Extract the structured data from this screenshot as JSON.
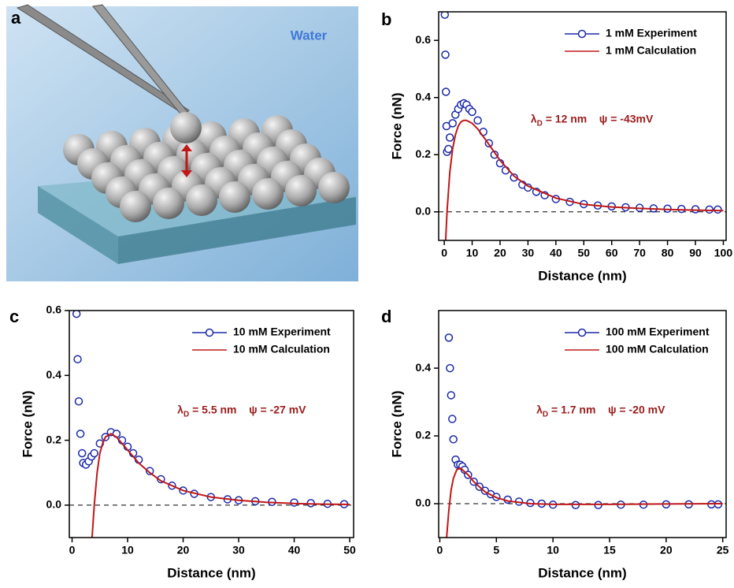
{
  "illustration": {
    "label": "a",
    "text": "Water"
  },
  "chart_data": [
    {
      "type": "line",
      "panel": "b",
      "xlabel": "Distance (nm)",
      "ylabel": "Force (nN)",
      "annotation": {
        "symbol": "λ",
        "subscript": "D",
        "text": " = 12 nm    ψ = -43mV"
      },
      "legend": "upper right",
      "hline": 0,
      "xlim": [
        -2,
        101
      ],
      "ylim": [
        -0.1,
        0.7
      ],
      "xticks": [
        0,
        10,
        20,
        30,
        40,
        50,
        60,
        70,
        80,
        90,
        100
      ],
      "yticks": [
        {
          "value": 0,
          "label": "0.0"
        },
        0.2,
        0.4,
        0.6
      ],
      "series": [
        {
          "name": "1 mM Experiment",
          "color": "#1a2aa8",
          "marker": "circle",
          "x": [
            0.2,
            0.4,
            0.6,
            0.8,
            1,
            1.5,
            2,
            3,
            4,
            5,
            6,
            7,
            8,
            9,
            10,
            12,
            14,
            16,
            18,
            20,
            22,
            25,
            28,
            30,
            33,
            36,
            40,
            45,
            50,
            55,
            60,
            65,
            70,
            75,
            80,
            85,
            90,
            95,
            98
          ],
          "values": [
            0.69,
            0.55,
            0.42,
            0.3,
            0.21,
            0.22,
            0.26,
            0.31,
            0.34,
            0.36,
            0.375,
            0.38,
            0.375,
            0.36,
            0.35,
            0.32,
            0.28,
            0.24,
            0.2,
            0.17,
            0.145,
            0.12,
            0.095,
            0.085,
            0.07,
            0.058,
            0.045,
            0.035,
            0.027,
            0.022,
            0.019,
            0.016,
            0.014,
            0.012,
            0.011,
            0.01,
            0.009,
            0.008,
            0.008
          ]
        },
        {
          "name": "1 mM Calculation",
          "color": "#c01818",
          "marker": "none",
          "x": [
            0.5,
            1,
            2,
            3,
            4,
            5,
            6,
            7,
            8,
            10,
            12,
            15,
            20,
            25,
            30,
            40,
            50,
            60,
            70,
            80,
            90,
            100
          ],
          "values": [
            -0.1,
            0.0,
            0.14,
            0.22,
            0.27,
            0.3,
            0.315,
            0.32,
            0.32,
            0.31,
            0.29,
            0.25,
            0.18,
            0.125,
            0.09,
            0.048,
            0.026,
            0.017,
            0.012,
            0.008,
            0.006,
            0.004
          ]
        }
      ]
    },
    {
      "type": "line",
      "panel": "c",
      "xlabel": "Distance (nm)",
      "ylabel": "Force (nN)",
      "annotation": {
        "symbol": "λ",
        "subscript": "D",
        "text": " = 5.5 nm    ψ = -27 mV"
      },
      "legend": "upper right",
      "hline": 0,
      "xlim": [
        -0.5,
        50.7
      ],
      "ylim": [
        -0.1,
        0.6
      ],
      "xticks": [
        0,
        10,
        20,
        30,
        40,
        50
      ],
      "yticks": [
        {
          "value": 0,
          "label": "0.0"
        },
        0.2,
        0.4,
        0.6
      ],
      "series": [
        {
          "name": "10 mM Experiment",
          "color": "#1a2aa8",
          "marker": "circle",
          "x": [
            0.8,
            1,
            1.2,
            1.5,
            1.8,
            2,
            2.5,
            3,
            3.5,
            4,
            5,
            6,
            7,
            8,
            9,
            10,
            11,
            12,
            14,
            16,
            18,
            20,
            22,
            25,
            28,
            30,
            33,
            36,
            40,
            43,
            46,
            49
          ],
          "values": [
            0.59,
            0.45,
            0.32,
            0.22,
            0.16,
            0.13,
            0.125,
            0.135,
            0.15,
            0.16,
            0.19,
            0.21,
            0.225,
            0.22,
            0.2,
            0.18,
            0.16,
            0.14,
            0.105,
            0.08,
            0.06,
            0.045,
            0.035,
            0.025,
            0.018,
            0.015,
            0.012,
            0.01,
            0.008,
            0.006,
            0.004,
            0.003
          ]
        },
        {
          "name": "10 mM Calculation",
          "color": "#c01818",
          "marker": "none",
          "x": [
            3.6,
            4,
            4.5,
            5,
            5.5,
            6,
            7,
            8,
            9,
            10,
            12,
            14,
            16,
            20,
            25,
            30,
            35,
            40,
            45,
            50
          ],
          "values": [
            -0.1,
            0.0,
            0.1,
            0.16,
            0.19,
            0.21,
            0.22,
            0.21,
            0.19,
            0.17,
            0.13,
            0.1,
            0.075,
            0.045,
            0.025,
            0.015,
            0.009,
            0.005,
            0.003,
            0.002
          ]
        }
      ]
    },
    {
      "type": "line",
      "panel": "d",
      "xlabel": "Distance (nm)",
      "ylabel": "Force (nN)",
      "annotation": {
        "symbol": "λ",
        "subscript": "D",
        "text": " = 1.7 nm    ψ = -20 mV"
      },
      "legend": "upper right",
      "hline": 0,
      "xlim": [
        -0.1,
        25.3
      ],
      "ylim": [
        -0.1,
        0.57
      ],
      "xticks": [
        0,
        5,
        10,
        15,
        20,
        25
      ],
      "yticks": [
        {
          "value": 0,
          "label": "0.0"
        },
        0.2,
        0.4
      ],
      "series": [
        {
          "name": "100 mM Experiment",
          "color": "#1a2aa8",
          "marker": "circle",
          "x": [
            0.8,
            0.9,
            1,
            1.1,
            1.2,
            1.4,
            1.6,
            1.8,
            2,
            2.2,
            2.5,
            3,
            3.5,
            4,
            4.5,
            5,
            6,
            7,
            8,
            9,
            10,
            12,
            14,
            16,
            18,
            20,
            22,
            24,
            24.6
          ],
          "values": [
            0.49,
            0.4,
            0.32,
            0.25,
            0.19,
            0.13,
            0.115,
            0.115,
            0.11,
            0.1,
            0.085,
            0.065,
            0.05,
            0.038,
            0.028,
            0.02,
            0.012,
            0.006,
            0.002,
            0.0,
            -0.003,
            -0.004,
            -0.004,
            -0.003,
            -0.003,
            -0.002,
            -0.002,
            -0.002,
            -0.002
          ]
        },
        {
          "name": "100 mM Calculation",
          "color": "#c01818",
          "marker": "none",
          "x": [
            0.6,
            0.8,
            1,
            1.2,
            1.5,
            1.8,
            2,
            2.5,
            3,
            4,
            5,
            6,
            8,
            10,
            15,
            20,
            25
          ],
          "values": [
            -0.1,
            -0.02,
            0.04,
            0.075,
            0.1,
            0.105,
            0.1,
            0.085,
            0.065,
            0.035,
            0.018,
            0.008,
            0.0,
            -0.002,
            -0.002,
            -0.001,
            0.0
          ]
        }
      ]
    }
  ]
}
